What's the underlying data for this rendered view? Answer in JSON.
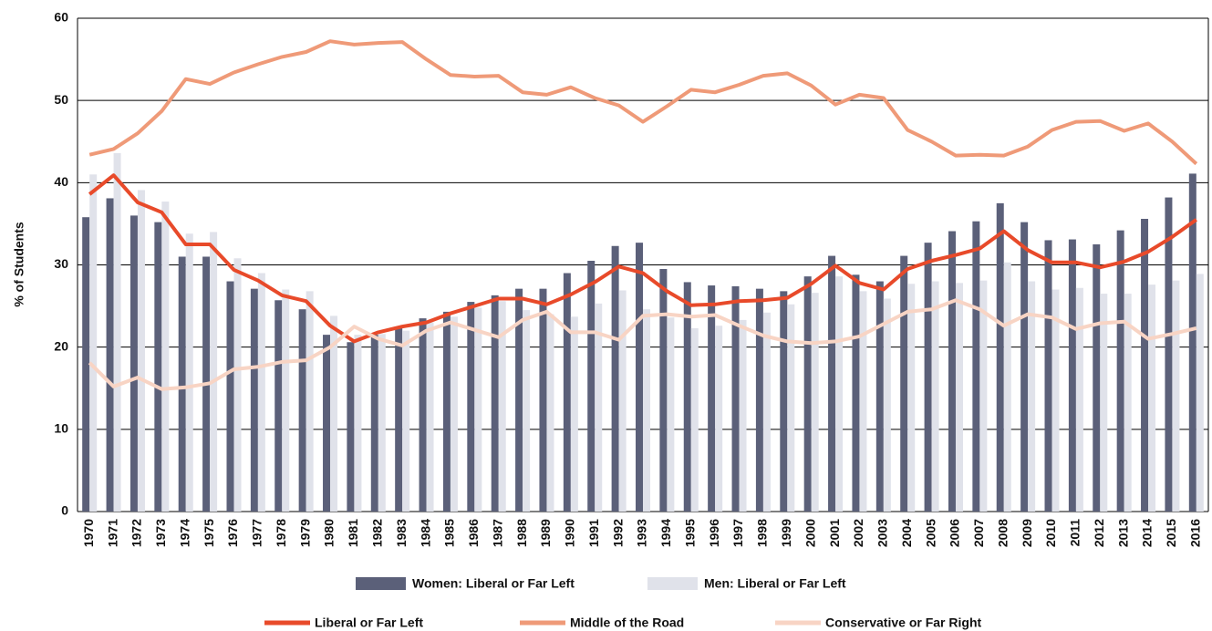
{
  "chart_data": {
    "type": "bar_line",
    "y_label": "% of Students",
    "categories": [
      "1970",
      "1971",
      "1972",
      "1973",
      "1974",
      "1975",
      "1976",
      "1977",
      "1978",
      "1979",
      "1980",
      "1981",
      "1982",
      "1983",
      "1984",
      "1985",
      "1986",
      "1987",
      "1988",
      "1989",
      "1990",
      "1991",
      "1992",
      "1993",
      "1994",
      "1995",
      "1996",
      "1997",
      "1998",
      "1999",
      "2000",
      "2001",
      "2002",
      "2003",
      "2004",
      "2005",
      "2006",
      "2007",
      "2008",
      "2009",
      "2010",
      "2011",
      "2012",
      "2013",
      "2014",
      "2015",
      "2016"
    ],
    "series": [
      {
        "name": "Women: Liberal or Far Left",
        "kind": "bar",
        "color": "#5b6079",
        "values": [
          35.8,
          38.1,
          36.0,
          35.2,
          31.0,
          31.0,
          28.0,
          27.1,
          25.7,
          24.6,
          21.5,
          20.6,
          21.5,
          22.5,
          23.5,
          24.3,
          25.5,
          26.3,
          27.1,
          27.1,
          29.0,
          30.5,
          32.3,
          32.7,
          29.5,
          27.9,
          27.5,
          27.4,
          27.1,
          26.8,
          28.6,
          31.1,
          28.8,
          28.0,
          31.1,
          32.7,
          34.1,
          35.3,
          37.5,
          35.2,
          33.0,
          33.1,
          32.5,
          34.2,
          35.6,
          38.2,
          41.1
        ]
      },
      {
        "name": "Men: Liberal or Far Left",
        "kind": "bar",
        "color": "#e0e2ea",
        "values": [
          41.0,
          43.6,
          39.1,
          37.7,
          33.8,
          34.0,
          30.8,
          29.0,
          27.0,
          26.8,
          23.8,
          21.5,
          21.6,
          22.0,
          23.0,
          23.7,
          24.8,
          25.6,
          24.5,
          24.0,
          23.7,
          25.3,
          26.9,
          24.6,
          23.6,
          22.3,
          22.6,
          23.3,
          24.2,
          25.2,
          26.6,
          28.6,
          26.8,
          25.9,
          27.7,
          28.0,
          27.8,
          28.1,
          30.3,
          28.0,
          27.0,
          27.2,
          26.5,
          26.5,
          27.6,
          28.1,
          28.9
        ]
      },
      {
        "name": "Liberal or Far Left",
        "kind": "line",
        "color": "#e84a2a",
        "values": [
          38.6,
          40.9,
          37.6,
          36.4,
          32.5,
          32.5,
          29.4,
          28.1,
          26.3,
          25.6,
          22.6,
          20.7,
          21.8,
          22.5,
          23.0,
          24.1,
          25.0,
          25.9,
          25.9,
          25.2,
          26.4,
          27.9,
          29.8,
          29.0,
          26.8,
          25.1,
          25.2,
          25.6,
          25.7,
          26.0,
          27.7,
          29.9,
          27.8,
          27.0,
          29.5,
          30.5,
          31.2,
          32.0,
          34.1,
          31.8,
          30.3,
          30.3,
          29.7,
          30.4,
          31.6,
          33.4,
          35.5
        ]
      },
      {
        "name": "Middle of the Road",
        "kind": "line",
        "color": "#ef9a78",
        "values": [
          43.4,
          44.1,
          46.0,
          48.7,
          52.6,
          52.0,
          53.4,
          54.4,
          55.3,
          55.9,
          57.2,
          56.8,
          57.0,
          57.1,
          55.0,
          53.1,
          52.9,
          53.0,
          51.0,
          50.7,
          51.6,
          50.3,
          49.4,
          47.4,
          49.3,
          51.3,
          51.0,
          51.9,
          53.0,
          53.3,
          51.8,
          49.5,
          50.7,
          50.3,
          46.4,
          45.0,
          43.3,
          43.4,
          43.3,
          44.4,
          46.4,
          47.4,
          47.5,
          46.3,
          47.2,
          45.0,
          42.3
        ]
      },
      {
        "name": "Conservative or Far Right",
        "kind": "line",
        "color": "#f8d4c4",
        "values": [
          18.1,
          15.2,
          16.3,
          14.9,
          15.1,
          15.6,
          17.3,
          17.6,
          18.2,
          18.4,
          20.0,
          22.5,
          21.0,
          20.2,
          22.0,
          23.0,
          22.1,
          21.2,
          23.3,
          24.3,
          21.8,
          21.8,
          20.9,
          23.8,
          24.0,
          23.7,
          23.9,
          22.6,
          21.4,
          20.7,
          20.5,
          20.7,
          21.3,
          22.8,
          24.3,
          24.6,
          25.7,
          24.6,
          22.6,
          24.0,
          23.6,
          22.2,
          22.9,
          23.1,
          21.0,
          21.6,
          22.3
        ]
      }
    ],
    "ylim": [
      0,
      60
    ],
    "yticks": [
      0,
      10,
      20,
      30,
      40,
      50,
      60
    ],
    "grid": true
  }
}
